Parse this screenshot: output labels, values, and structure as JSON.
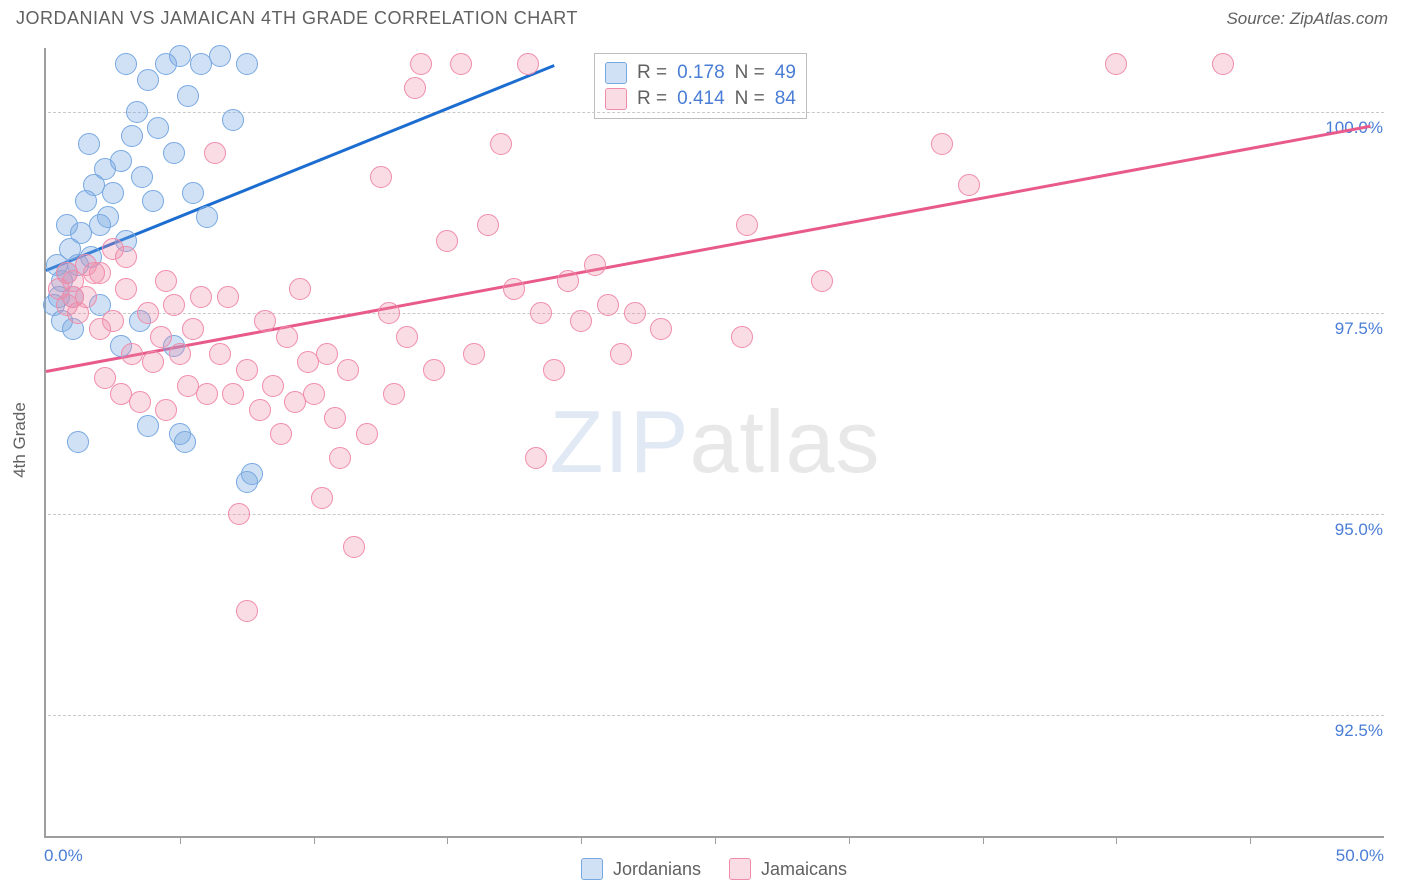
{
  "title": "JORDANIAN VS JAMAICAN 4TH GRADE CORRELATION CHART",
  "source": "Source: ZipAtlas.com",
  "yaxis_title": "4th Grade",
  "watermark": "ZIPatlas",
  "chart": {
    "type": "scatter",
    "background_color": "#ffffff",
    "grid_color": "#c9c9c9",
    "axis_color": "#9e9e9e",
    "label_color": "#4a7dd6",
    "text_color": "#616161",
    "xlim": [
      0,
      50
    ],
    "ylim": [
      91.0,
      100.8
    ],
    "xtick_step": 5,
    "xtick_labels": {
      "0": "0.0%",
      "50": "50.0%"
    },
    "ygrid_values": [
      92.5,
      95.0,
      97.5,
      100.0
    ],
    "ygrid_labels": [
      "92.5%",
      "95.0%",
      "97.5%",
      "100.0%"
    ],
    "marker_radius": 11,
    "marker_stroke_width": 1.5,
    "line_width": 3,
    "series": [
      {
        "name": "Jordanians",
        "fill": "rgba(119,168,225,0.35)",
        "stroke": "#77a8e1",
        "line_color": "#1c6dd0",
        "R_label": "R  =",
        "R": "0.178",
        "N_label": "N  =",
        "N": "49",
        "trend": {
          "x1": 0,
          "y1": 98.05,
          "x2": 19,
          "y2": 100.6
        },
        "points": [
          [
            0.3,
            97.6
          ],
          [
            0.5,
            97.7
          ],
          [
            0.6,
            97.9
          ],
          [
            0.4,
            98.1
          ],
          [
            0.8,
            98.0
          ],
          [
            0.9,
            98.3
          ],
          [
            1.0,
            97.7
          ],
          [
            1.2,
            98.1
          ],
          [
            1.3,
            98.5
          ],
          [
            1.5,
            98.9
          ],
          [
            1.7,
            98.2
          ],
          [
            1.8,
            99.1
          ],
          [
            2.0,
            98.6
          ],
          [
            2.2,
            99.3
          ],
          [
            2.5,
            99.0
          ],
          [
            2.8,
            99.4
          ],
          [
            3.0,
            98.4
          ],
          [
            3.2,
            99.7
          ],
          [
            3.4,
            100.0
          ],
          [
            3.6,
            99.2
          ],
          [
            3.8,
            100.4
          ],
          [
            4.0,
            98.9
          ],
          [
            4.2,
            99.8
          ],
          [
            4.5,
            100.6
          ],
          [
            4.8,
            99.5
          ],
          [
            5.0,
            100.7
          ],
          [
            5.3,
            100.2
          ],
          [
            5.5,
            99.0
          ],
          [
            5.8,
            100.6
          ],
          [
            6.0,
            98.7
          ],
          [
            6.5,
            100.7
          ],
          [
            7.0,
            99.9
          ],
          [
            7.5,
            100.6
          ],
          [
            1.0,
            97.3
          ],
          [
            1.2,
            95.9
          ],
          [
            2.0,
            97.6
          ],
          [
            2.3,
            98.7
          ],
          [
            2.8,
            97.1
          ],
          [
            3.0,
            100.6
          ],
          [
            3.5,
            97.4
          ],
          [
            0.8,
            98.6
          ],
          [
            1.6,
            99.6
          ],
          [
            3.8,
            96.1
          ],
          [
            4.8,
            97.1
          ],
          [
            5.0,
            96.0
          ],
          [
            5.2,
            95.9
          ],
          [
            7.5,
            95.4
          ],
          [
            7.7,
            95.5
          ],
          [
            0.6,
            97.4
          ]
        ]
      },
      {
        "name": "Jamaicans",
        "fill": "rgba(240,140,170,0.30)",
        "stroke": "#f08caa",
        "line_color": "#e85a8b",
        "R_label": "R  =",
        "R": "0.414",
        "N_label": "N  =",
        "N": "84",
        "trend": {
          "x1": 0,
          "y1": 96.8,
          "x2": 49.5,
          "y2": 99.85
        },
        "points": [
          [
            0.5,
            97.8
          ],
          [
            0.8,
            97.6
          ],
          [
            1.0,
            97.9
          ],
          [
            1.2,
            97.5
          ],
          [
            1.5,
            97.7
          ],
          [
            1.8,
            98.0
          ],
          [
            2.0,
            97.3
          ],
          [
            2.2,
            96.7
          ],
          [
            2.5,
            97.4
          ],
          [
            2.8,
            96.5
          ],
          [
            3.0,
            97.8
          ],
          [
            3.2,
            97.0
          ],
          [
            3.5,
            96.4
          ],
          [
            3.8,
            97.5
          ],
          [
            4.0,
            96.9
          ],
          [
            4.3,
            97.2
          ],
          [
            4.5,
            96.3
          ],
          [
            4.8,
            97.6
          ],
          [
            5.0,
            97.0
          ],
          [
            5.3,
            96.6
          ],
          [
            5.5,
            97.3
          ],
          [
            5.8,
            97.7
          ],
          [
            6.0,
            96.5
          ],
          [
            6.3,
            99.5
          ],
          [
            6.5,
            97.0
          ],
          [
            7.0,
            96.5
          ],
          [
            7.2,
            95.0
          ],
          [
            7.5,
            96.8
          ],
          [
            8.0,
            96.3
          ],
          [
            8.2,
            97.4
          ],
          [
            8.5,
            96.6
          ],
          [
            8.8,
            96.0
          ],
          [
            9.0,
            97.2
          ],
          [
            9.3,
            96.4
          ],
          [
            9.5,
            97.8
          ],
          [
            10.0,
            96.5
          ],
          [
            10.3,
            95.2
          ],
          [
            10.5,
            97.0
          ],
          [
            10.8,
            96.2
          ],
          [
            11.0,
            95.7
          ],
          [
            11.3,
            96.8
          ],
          [
            11.5,
            94.6
          ],
          [
            12.0,
            96.0
          ],
          [
            12.5,
            99.2
          ],
          [
            13.0,
            96.5
          ],
          [
            13.5,
            97.2
          ],
          [
            14.0,
            100.6
          ],
          [
            14.5,
            96.8
          ],
          [
            15.0,
            98.4
          ],
          [
            15.5,
            100.6
          ],
          [
            13.8,
            100.3
          ],
          [
            16.0,
            97.0
          ],
          [
            16.5,
            98.6
          ],
          [
            17.0,
            99.6
          ],
          [
            17.5,
            97.8
          ],
          [
            18.0,
            100.6
          ],
          [
            18.5,
            97.5
          ],
          [
            19.0,
            96.8
          ],
          [
            19.5,
            97.9
          ],
          [
            20.0,
            97.4
          ],
          [
            20.5,
            98.1
          ],
          [
            21.0,
            97.6
          ],
          [
            21.5,
            97.0
          ],
          [
            22.0,
            97.5
          ],
          [
            23.0,
            97.3
          ],
          [
            26.0,
            97.2
          ],
          [
            26.2,
            98.6
          ],
          [
            18.3,
            95.7
          ],
          [
            29.0,
            97.9
          ],
          [
            33.5,
            99.6
          ],
          [
            40.0,
            100.6
          ],
          [
            44.0,
            100.6
          ],
          [
            7.5,
            93.8
          ],
          [
            4.5,
            97.9
          ],
          [
            3.0,
            98.2
          ],
          [
            2.5,
            98.3
          ],
          [
            2.0,
            98.0
          ],
          [
            1.5,
            98.1
          ],
          [
            1.0,
            97.7
          ],
          [
            0.8,
            98.0
          ],
          [
            9.8,
            96.9
          ],
          [
            6.8,
            97.7
          ],
          [
            12.8,
            97.5
          ],
          [
            34.5,
            99.1
          ]
        ]
      }
    ]
  },
  "legend": {
    "items": [
      {
        "label": "Jordanians",
        "fill": "rgba(119,168,225,0.35)",
        "stroke": "#77a8e1"
      },
      {
        "label": "Jamaicans",
        "fill": "rgba(240,140,170,0.30)",
        "stroke": "#f08caa"
      }
    ]
  }
}
